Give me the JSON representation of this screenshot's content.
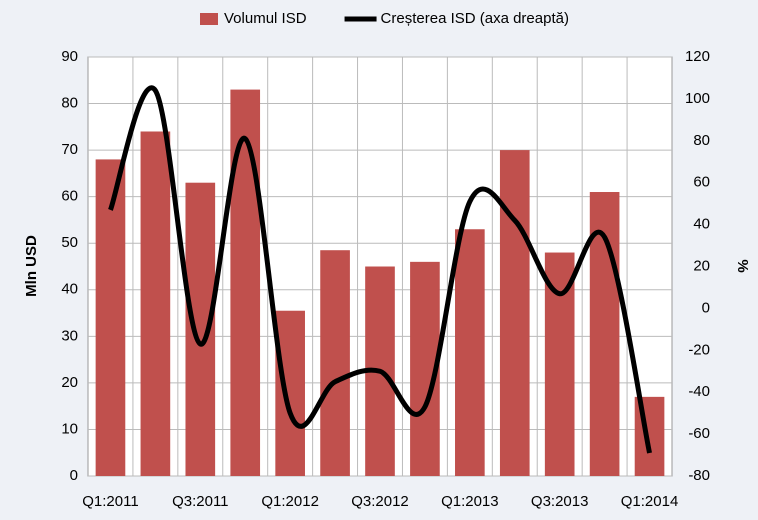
{
  "chart_data": {
    "type": "bar-line",
    "categories": [
      "Q1:2011",
      null,
      "Q3:2011",
      null,
      "Q1:2012",
      null,
      "Q3:2012",
      null,
      "Q1:2013",
      null,
      "Q3:2013",
      null,
      "Q1:2014"
    ],
    "series": [
      {
        "name": "Volumul ISD",
        "type": "bar",
        "color": "#c0504d",
        "values": [
          68,
          74,
          63,
          83,
          35.5,
          48.5,
          45,
          46,
          53,
          70,
          48,
          61,
          17
        ]
      },
      {
        "name": "Creșterea ISD (axa dreaptă)",
        "type": "line",
        "color": "#000000",
        "axis": "y2",
        "values": [
          47,
          104,
          -17,
          81,
          -50,
          -35,
          -30,
          -47,
          51,
          42,
          7,
          34,
          -69
        ]
      }
    ],
    "ylabel": "Mln USD",
    "y2label": "%",
    "ylim": [
      0,
      90
    ],
    "yticks": [
      0,
      10,
      20,
      30,
      40,
      50,
      60,
      70,
      80,
      90
    ],
    "y2lim": [
      -80,
      120
    ],
    "y2ticks": [
      -80,
      -60,
      -40,
      -20,
      0,
      20,
      40,
      60,
      80,
      100,
      120
    ],
    "grid": true,
    "legend": "top"
  }
}
